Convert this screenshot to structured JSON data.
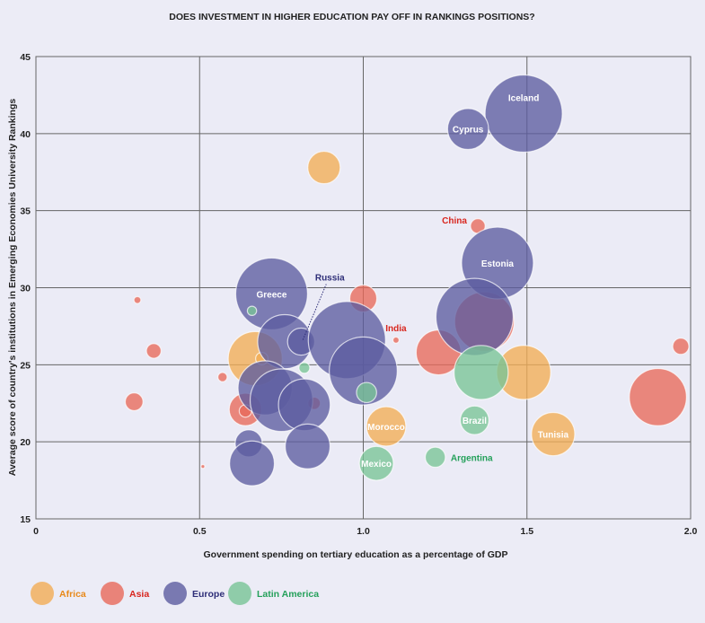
{
  "chart_data": {
    "type": "bubble",
    "title": "DOES INVESTMENT IN HIGHER EDUCATION PAY OFF IN RANKINGS POSITIONS?",
    "xlabel": "Government spending on tertiary education as a percentage of GDP",
    "ylabel": "Average score of country's institutions in Emerging Economies University Rankings",
    "xlim": [
      0,
      2.0
    ],
    "ylim": [
      15,
      45
    ],
    "xticks": [
      "0",
      "0.5",
      "1.0",
      "1.5",
      "2.0"
    ],
    "yticks": [
      "15",
      "20",
      "25",
      "30",
      "35",
      "40",
      "45"
    ],
    "grid": true,
    "legend_position": "bottom-left",
    "groups": [
      {
        "name": "Africa",
        "color": "#f2ad55",
        "text_color": "#e8891a"
      },
      {
        "name": "Asia",
        "color": "#e8695a",
        "text_color": "#d8261e"
      },
      {
        "name": "Europe",
        "color": "#5c5ca0",
        "text_color": "#2e2e78"
      },
      {
        "name": "Latin America",
        "color": "#78c496",
        "text_color": "#24a05a"
      }
    ],
    "points": [
      {
        "group": "Africa",
        "x": 0.88,
        "y": 37.8,
        "size": 4.2
      },
      {
        "group": "Africa",
        "x": 0.67,
        "y": 25.4,
        "size": 7
      },
      {
        "group": "Africa",
        "x": 0.69,
        "y": 25.4,
        "size": 1.6
      },
      {
        "group": "Africa",
        "x": 1.07,
        "y": 21.0,
        "size": 5.1,
        "label": "Morocco",
        "label_pos": "inside"
      },
      {
        "group": "Africa",
        "x": 1.49,
        "y": 24.5,
        "size": 7
      },
      {
        "group": "Africa",
        "x": 1.58,
        "y": 20.5,
        "size": 5.6,
        "label": "Tunisia",
        "label_pos": "inside"
      },
      {
        "group": "Asia",
        "x": 0.31,
        "y": 29.2,
        "size": 0.9
      },
      {
        "group": "Asia",
        "x": 0.36,
        "y": 25.9,
        "size": 1.9
      },
      {
        "group": "Asia",
        "x": 0.3,
        "y": 22.6,
        "size": 2.3
      },
      {
        "group": "Asia",
        "x": 0.57,
        "y": 24.2,
        "size": 1.2
      },
      {
        "group": "Asia",
        "x": 0.51,
        "y": 18.4,
        "size": 0.5
      },
      {
        "group": "Asia",
        "x": 0.64,
        "y": 22.1,
        "size": 4.2
      },
      {
        "group": "Asia",
        "x": 0.64,
        "y": 22.0,
        "size": 1.6
      },
      {
        "group": "Asia",
        "x": 0.85,
        "y": 22.5,
        "size": 1.6
      },
      {
        "group": "Asia",
        "x": 1.0,
        "y": 29.3,
        "size": 3.5
      },
      {
        "group": "Asia",
        "x": 1.1,
        "y": 26.6,
        "size": 0.8,
        "label": "India",
        "label_pos": "above"
      },
      {
        "group": "Asia",
        "x": 1.23,
        "y": 25.8,
        "size": 5.8
      },
      {
        "group": "Asia",
        "x": 1.35,
        "y": 34.0,
        "size": 1.9,
        "label": "China",
        "label_pos": "left"
      },
      {
        "group": "Asia",
        "x": 1.37,
        "y": 27.8,
        "size": 7.7
      },
      {
        "group": "Asia",
        "x": 1.97,
        "y": 26.2,
        "size": 2.1
      },
      {
        "group": "Asia",
        "x": 1.9,
        "y": 22.9,
        "size": 7.4
      },
      {
        "group": "Europe",
        "x": 1.49,
        "y": 41.3,
        "size": 10,
        "label": "Iceland",
        "label_pos": "inside-top"
      },
      {
        "group": "Europe",
        "x": 1.32,
        "y": 40.3,
        "size": 5.3,
        "label": "Cyprus",
        "label_pos": "inside"
      },
      {
        "group": "Europe",
        "x": 1.41,
        "y": 31.6,
        "size": 9.3,
        "label": "Estonia",
        "label_pos": "inside"
      },
      {
        "group": "Europe",
        "x": 1.34,
        "y": 28.1,
        "size": 10
      },
      {
        "group": "Europe",
        "x": 0.72,
        "y": 29.6,
        "size": 9.3,
        "label": "Greece",
        "label_pos": "inside"
      },
      {
        "group": "Europe",
        "x": 0.76,
        "y": 26.5,
        "size": 7
      },
      {
        "group": "Europe",
        "x": 0.81,
        "y": 26.5,
        "size": 3.5,
        "label": "Russia",
        "label_pos": "callout"
      },
      {
        "group": "Europe",
        "x": 0.95,
        "y": 26.6,
        "size": 10
      },
      {
        "group": "Europe",
        "x": 1.0,
        "y": 24.6,
        "size": 8.8
      },
      {
        "group": "Europe",
        "x": 0.7,
        "y": 23.5,
        "size": 7
      },
      {
        "group": "Europe",
        "x": 0.75,
        "y": 22.7,
        "size": 8.1
      },
      {
        "group": "Europe",
        "x": 0.82,
        "y": 22.4,
        "size": 6.7
      },
      {
        "group": "Europe",
        "x": 0.65,
        "y": 19.9,
        "size": 3.5
      },
      {
        "group": "Europe",
        "x": 0.66,
        "y": 18.6,
        "size": 5.8
      },
      {
        "group": "Europe",
        "x": 0.83,
        "y": 19.7,
        "size": 5.8
      },
      {
        "group": "Latin America",
        "x": 0.66,
        "y": 28.5,
        "size": 1.2
      },
      {
        "group": "Latin America",
        "x": 0.82,
        "y": 24.8,
        "size": 1.4
      },
      {
        "group": "Latin America",
        "x": 1.01,
        "y": 23.2,
        "size": 2.6
      },
      {
        "group": "Latin America",
        "x": 1.36,
        "y": 24.5,
        "size": 7
      },
      {
        "group": "Latin America",
        "x": 1.34,
        "y": 21.4,
        "size": 3.7,
        "label": "Brazil",
        "label_pos": "inside"
      },
      {
        "group": "Latin America",
        "x": 1.04,
        "y": 18.6,
        "size": 4.4,
        "label": "Mexico",
        "label_pos": "inside"
      },
      {
        "group": "Latin America",
        "x": 1.22,
        "y": 19.0,
        "size": 2.6,
        "label": "Argentina",
        "label_pos": "right"
      }
    ]
  }
}
